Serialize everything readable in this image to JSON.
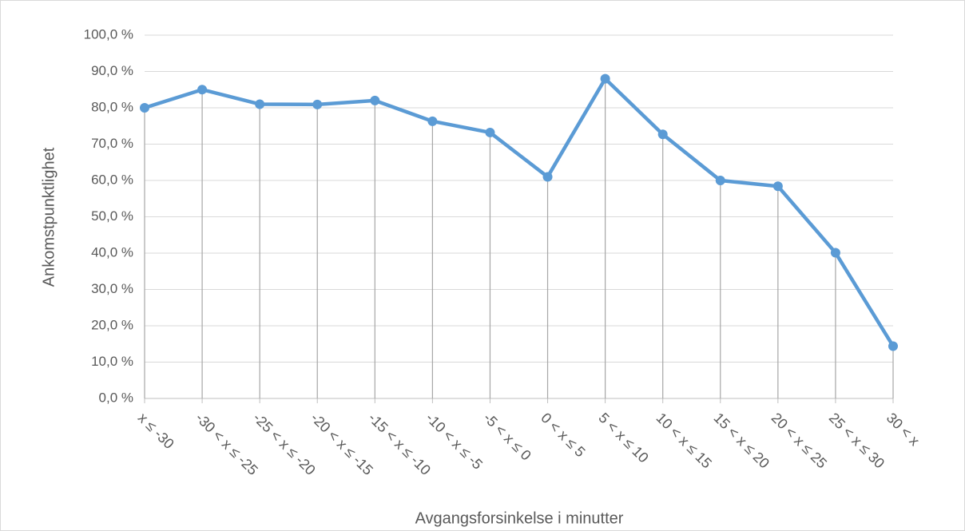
{
  "chart_data": {
    "type": "line",
    "x_label": "Avgangsforsinkelse i minutter",
    "y_label": "Ankomstpunktlighet",
    "categories": [
      "x ≤ -30",
      "-30 < x ≤ -25",
      "-25 < x ≤ -20",
      "-20 < x ≤ -15",
      "-15 < x ≤ -10",
      "-10 < x ≤ -5",
      "-5 < x ≤ 0",
      "0 < x ≤ 5",
      "5 < x ≤ 10",
      "10 < x ≤ 15",
      "15 < x ≤ 20",
      "20 < x ≤ 25",
      "25 < x ≤ 30",
      "30 < x"
    ],
    "series": [
      {
        "name": "Ankomstpunktlighet",
        "color": "#5b9bd5",
        "values": [
          80,
          85,
          81,
          80.9,
          82,
          76.3,
          73.2,
          61,
          88,
          72.7,
          60,
          58.4,
          40.1,
          14.4
        ]
      }
    ],
    "ylim": [
      0,
      100
    ],
    "yticks": [
      {
        "value": 0,
        "label": "0,0 %"
      },
      {
        "value": 10,
        "label": "10,0 %"
      },
      {
        "value": 20,
        "label": "20,0 %"
      },
      {
        "value": 30,
        "label": "30,0 %"
      },
      {
        "value": 40,
        "label": "40,0 %"
      },
      {
        "value": 50,
        "label": "50,0 %"
      },
      {
        "value": 60,
        "label": "60,0 %"
      },
      {
        "value": 70,
        "label": "70,0 %"
      },
      {
        "value": 80,
        "label": "80,0 %"
      },
      {
        "value": 90,
        "label": "90,0 %"
      },
      {
        "value": 100,
        "label": "100,0 %"
      }
    ],
    "grid": true,
    "drop_lines": true
  }
}
